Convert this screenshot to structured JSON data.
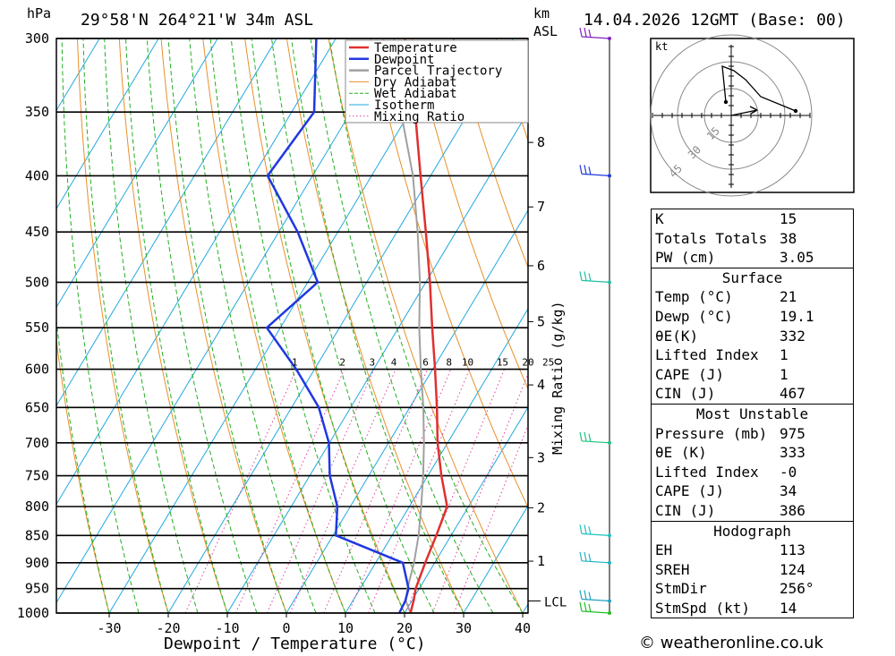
{
  "header": {
    "location": "29°58'N 264°21'W 34m ASL",
    "datetime": "14.04.2026 12GMT (Base: 00)",
    "hpa_label": "hPa",
    "km_label": "km",
    "asl_label": "ASL"
  },
  "chart_data": {
    "type": "line",
    "title": "29°58'N 264°21'W 34m ASL",
    "xlabel": "Dewpoint / Temperature (°C)",
    "ylabel": "hPa",
    "y2label": "Mixing Ratio (g/kg)",
    "x_ticks": [
      -30,
      -20,
      -10,
      0,
      10,
      20,
      30,
      40
    ],
    "pressure_levels": [
      300,
      350,
      400,
      450,
      500,
      550,
      600,
      650,
      700,
      750,
      800,
      850,
      900,
      950,
      1000
    ],
    "km_ticks": [
      {
        "label": "8",
        "p": 373
      },
      {
        "label": "7",
        "p": 427
      },
      {
        "label": "6",
        "p": 483
      },
      {
        "label": "5",
        "p": 543
      },
      {
        "label": "4",
        "p": 620
      },
      {
        "label": "3",
        "p": 722
      },
      {
        "label": "2",
        "p": 802
      },
      {
        "label": "1",
        "p": 897
      }
    ],
    "lcl_label": "LCL",
    "lcl_pressure": 975,
    "mixing_ratio_labels": [
      "1",
      "2",
      "3",
      "4",
      "6",
      "8",
      "10",
      "15",
      "20",
      "25"
    ],
    "legend": [
      "Temperature",
      "Dewpoint",
      "Parcel Trajectory",
      "Dry Adiabat",
      "Wet Adiabat",
      "Isotherm",
      "Mixing Ratio"
    ],
    "series": [
      {
        "name": "Temperature",
        "color": "#e03030",
        "points": [
          [
            1000,
            21
          ],
          [
            975,
            20.3
          ],
          [
            950,
            19.4
          ],
          [
            900,
            18.4
          ],
          [
            850,
            17.5
          ],
          [
            800,
            16.4
          ],
          [
            750,
            12.3
          ],
          [
            700,
            8.3
          ],
          [
            650,
            4.6
          ],
          [
            600,
            0.4
          ],
          [
            550,
            -4.3
          ],
          [
            500,
            -9.3
          ],
          [
            450,
            -15.1
          ],
          [
            400,
            -21.7
          ],
          [
            350,
            -29.1
          ],
          [
            300,
            -38.3
          ]
        ]
      },
      {
        "name": "Dewpoint",
        "color": "#2038e0",
        "points": [
          [
            1000,
            19.1
          ],
          [
            975,
            18.9
          ],
          [
            950,
            18.2
          ],
          [
            900,
            14.6
          ],
          [
            850,
            0.5
          ],
          [
            800,
            -2.2
          ],
          [
            750,
            -6.6
          ],
          [
            700,
            -10.1
          ],
          [
            650,
            -15.4
          ],
          [
            600,
            -23.1
          ],
          [
            550,
            -32.3
          ],
          [
            500,
            -28.3
          ],
          [
            450,
            -36.8
          ],
          [
            400,
            -47.6
          ],
          [
            350,
            -46.2
          ],
          [
            300,
            -53.3
          ]
        ]
      },
      {
        "name": "Parcel Trajectory",
        "color": "#a0a0a0",
        "points": [
          [
            1000,
            21
          ],
          [
            975,
            19
          ],
          [
            950,
            18
          ],
          [
            900,
            16.5
          ],
          [
            850,
            14.5
          ],
          [
            800,
            12
          ],
          [
            750,
            9.2
          ],
          [
            700,
            6
          ],
          [
            650,
            2.3
          ],
          [
            600,
            -2
          ],
          [
            550,
            -6.5
          ],
          [
            500,
            -11
          ],
          [
            450,
            -16.5
          ],
          [
            400,
            -23
          ],
          [
            350,
            -31.5
          ],
          [
            300,
            -42
          ]
        ]
      }
    ],
    "hodograph": {
      "unit_label": "kt",
      "ring_labels": [
        "15",
        "30",
        "45"
      ]
    }
  },
  "indices": {
    "block1": [
      {
        "label": "K",
        "value": "15"
      },
      {
        "label": "Totals Totals",
        "value": "38"
      },
      {
        "label": "PW (cm)",
        "value": "3.05"
      }
    ],
    "surface": {
      "title": "Surface",
      "rows": [
        {
          "label": "Temp (°C)",
          "value": "21"
        },
        {
          "label": "Dewp (°C)",
          "value": "19.1"
        },
        {
          "label": "θE(K)",
          "value": "332"
        },
        {
          "label": "Lifted Index",
          "value": "1"
        },
        {
          "label": "CAPE (J)",
          "value": "1"
        },
        {
          "label": "CIN (J)",
          "value": "467"
        }
      ]
    },
    "most_unstable": {
      "title": "Most Unstable",
      "rows": [
        {
          "label": "Pressure (mb)",
          "value": "975"
        },
        {
          "label": "θE (K)",
          "value": "333"
        },
        {
          "label": "Lifted Index",
          "value": "-0"
        },
        {
          "label": "CAPE (J)",
          "value": "34"
        },
        {
          "label": "CIN (J)",
          "value": "386"
        }
      ]
    },
    "hodograph": {
      "title": "Hodograph",
      "rows": [
        {
          "label": "EH",
          "value": "113"
        },
        {
          "label": "SREH",
          "value": "124"
        },
        {
          "label": "StmDir",
          "value": "256°"
        },
        {
          "label": "StmSpd (kt)",
          "value": "14"
        }
      ]
    }
  },
  "copyright": "© weatheronline.co.uk",
  "colors": {
    "temperature": "#e03030",
    "dewpoint": "#2038e0",
    "parcel": "#a0a0a0",
    "dry_adiabat": "#e8902a",
    "wet_adiabat": "#20b020",
    "isotherm": "#20a8e0",
    "mixing_ratio": "#e040a0"
  }
}
